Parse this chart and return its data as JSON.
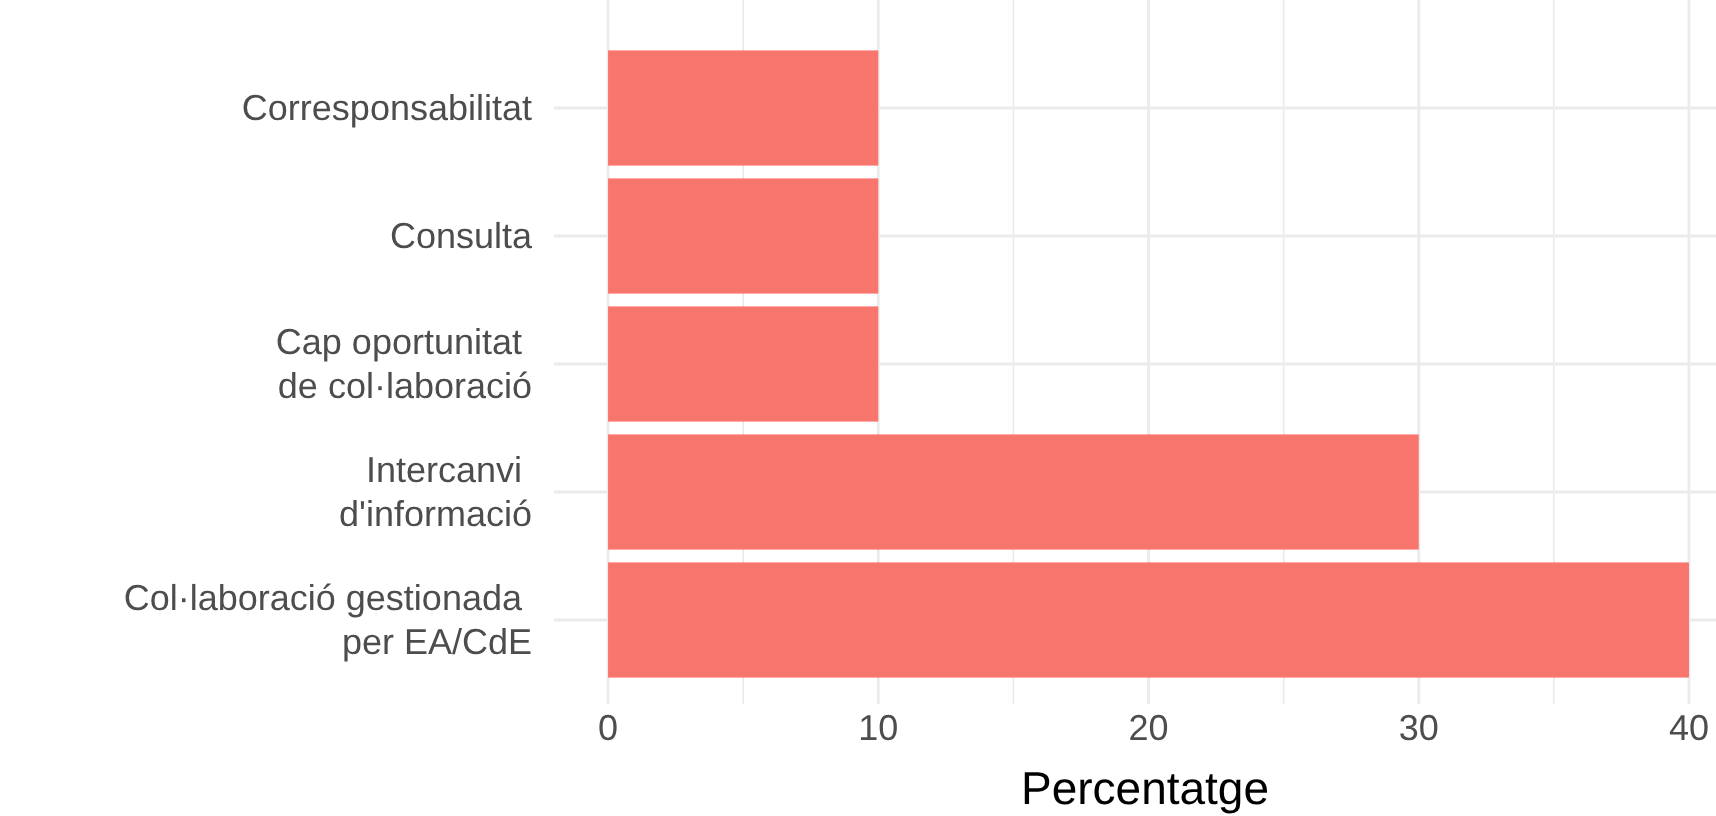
{
  "chart_data": {
    "type": "bar",
    "orientation": "horizontal",
    "xlabel": "Percentatge",
    "categories": [
      "Corresponsabilitat",
      "Consulta",
      "Cap oportunitat \nde col·laboració",
      "Intercanvi \nd'informació",
      "Col·laboració gestionada \nper EA/CdE"
    ],
    "values": [
      10,
      10,
      10,
      30,
      40
    ],
    "color": "#f8766d",
    "xlim": [
      -2,
      41
    ],
    "xticks": [
      0,
      {
        "value": 5,
        "label": null
      },
      10,
      {
        "value": 15,
        "label": null
      },
      20,
      {
        "value": 25,
        "label": null
      },
      30,
      {
        "value": 35,
        "label": null
      },
      40
    ],
    "grid": true
  }
}
